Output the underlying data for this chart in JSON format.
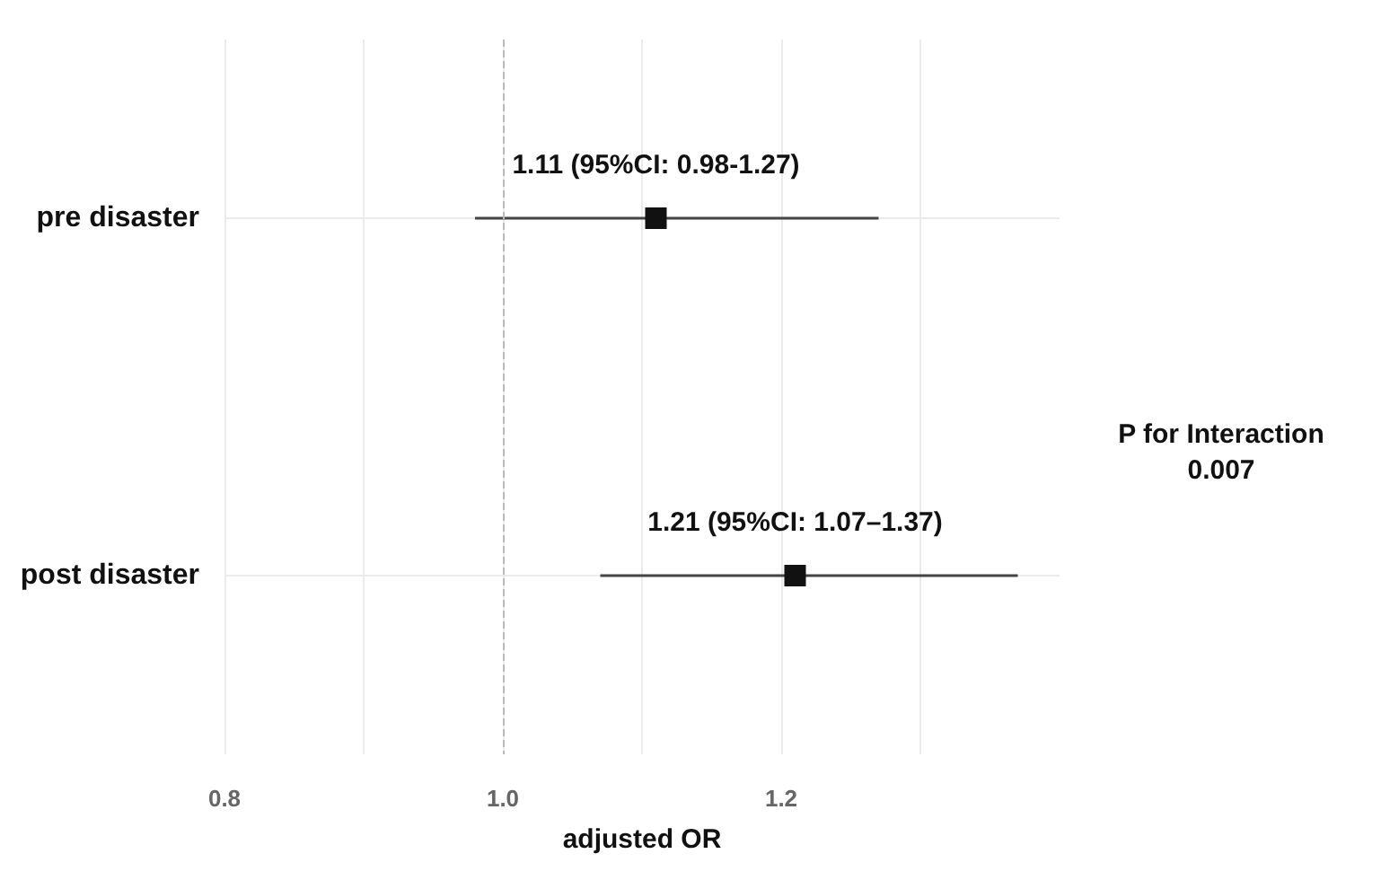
{
  "chart_data": {
    "type": "scatter",
    "orientation": "horizontal",
    "categories": [
      "pre disaster",
      "post disaster"
    ],
    "values": [
      1.11,
      1.21
    ],
    "errors": [
      [
        0.98,
        1.27
      ],
      [
        1.07,
        1.37
      ]
    ],
    "color": "#111111",
    "marker": "square",
    "xlabel": "adjusted OR",
    "xlim": [
      0.8,
      1.4
    ],
    "xticks": [
      {
        "value": 0.8,
        "label": "0.8"
      },
      {
        "value": 0.9,
        "label": null
      },
      {
        "value": 1.0,
        "label": "1.0"
      },
      {
        "value": 1.1,
        "label": null
      },
      {
        "value": 1.2,
        "label": "1.2"
      },
      {
        "value": 1.3,
        "label": null
      }
    ],
    "grid": true,
    "ref_lines": [
      {
        "axis": "x",
        "value": 1.0,
        "color": "#bbbbbb",
        "line_style": "dashed"
      }
    ],
    "annotations": [
      {
        "text": "1.11 (95%CI: 0.98-1.27)",
        "x": 1.11,
        "y": "pre disaster"
      },
      {
        "text": "1.21 (95%CI: 1.07–1.37)",
        "x": 1.21,
        "y": "post disaster"
      },
      "P for Interaction\n0.007"
    ]
  }
}
